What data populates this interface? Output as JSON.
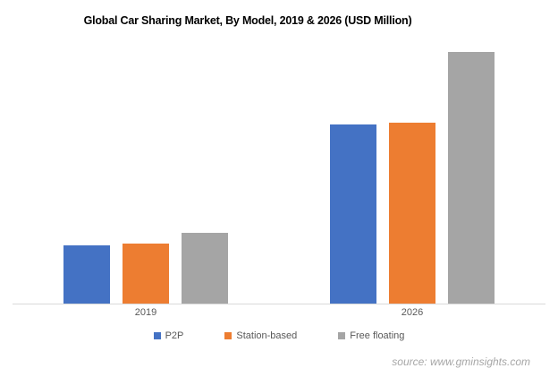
{
  "chart_data": {
    "type": "bar",
    "title": "Global Car Sharing Market, By Model, 2019 & 2026 (USD Million)",
    "categories": [
      "2019",
      "2026"
    ],
    "series": [
      {
        "name": "P2P",
        "color": "#4472C4",
        "values": [
          23,
          71
        ]
      },
      {
        "name": "Station-based",
        "color": "#ED7D31",
        "values": [
          24,
          72
        ]
      },
      {
        "name": "Free floating",
        "color": "#A5A5A5",
        "values": [
          28,
          100
        ]
      }
    ],
    "xlabel": "",
    "ylabel": "",
    "ylim": [
      0,
      100
    ],
    "value_scale_note": "no y-axis or data labels shown; values are a relative index estimated from bar heights, tallest bar (Free floating 2026) = 100",
    "grid": false,
    "legend_position": "bottom"
  },
  "source": {
    "text": "source: www.gminsights.com"
  },
  "colors": {
    "title_text": "#000000",
    "axis_line": "#D9D9D9",
    "category_label": "#595959",
    "legend_label": "#595959",
    "source_text": "#A6A6A6"
  }
}
